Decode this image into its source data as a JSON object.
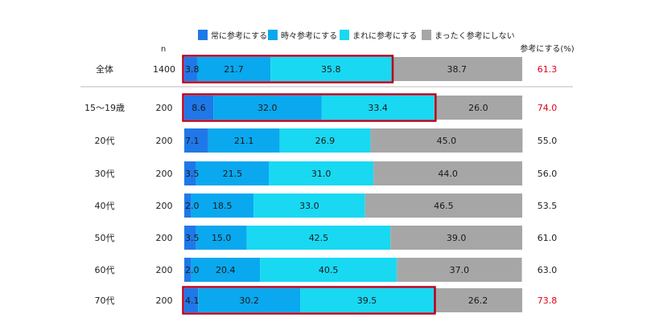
{
  "chart_data": {
    "type": "bar",
    "orientation": "horizontal-stacked-100",
    "n_header": "n",
    "total_header": "参考にする(%)",
    "series": [
      {
        "name": "常に参考にする",
        "color": "#1f78e8"
      },
      {
        "name": "時々参考にする",
        "color": "#0aa8ee"
      },
      {
        "name": "まれに参考にする",
        "color": "#19d8f2"
      },
      {
        "name": "まったく参考にしない",
        "color": "#a6a6a6"
      }
    ],
    "rows": [
      {
        "label": "全体",
        "n": "1400",
        "values": [
          3.8,
          21.7,
          35.8,
          38.7
        ],
        "labels": [
          "3.8",
          "21.7",
          "35.8",
          "38.7"
        ],
        "total": "61.3",
        "highlight": true
      },
      {
        "label": "15～19歳",
        "n": "200",
        "values": [
          8.6,
          32.0,
          33.4,
          26.0
        ],
        "labels": [
          "8.6",
          "32.0",
          "33.4",
          "26.0"
        ],
        "total": "74.0",
        "highlight": true
      },
      {
        "label": "20代",
        "n": "200",
        "values": [
          7.1,
          21.1,
          26.9,
          45.0
        ],
        "labels": [
          "7.1",
          "21.1",
          "26.9",
          "45.0"
        ],
        "total": "55.0",
        "highlight": false
      },
      {
        "label": "30代",
        "n": "200",
        "values": [
          3.5,
          21.5,
          31.0,
          44.0
        ],
        "labels": [
          "3.5",
          "21.5",
          "31.0",
          "44.0"
        ],
        "total": "56.0",
        "highlight": false
      },
      {
        "label": "40代",
        "n": "200",
        "values": [
          2.0,
          18.5,
          33.0,
          46.5
        ],
        "labels": [
          "2.0",
          "18.5",
          "33.0",
          "46.5"
        ],
        "total": "53.5",
        "highlight": false
      },
      {
        "label": "50代",
        "n": "200",
        "values": [
          3.5,
          15.0,
          42.5,
          39.0
        ],
        "labels": [
          "3.5",
          "15.0",
          "42.5",
          "39.0"
        ],
        "total": "61.0",
        "highlight": false
      },
      {
        "label": "60代",
        "n": "200",
        "values": [
          2.0,
          20.4,
          40.5,
          37.0
        ],
        "labels": [
          "2.0",
          "20.4",
          "40.5",
          "37.0"
        ],
        "total": "63.0",
        "highlight": false
      },
      {
        "label": "70代",
        "n": "200",
        "values": [
          4.1,
          30.2,
          39.5,
          26.2
        ],
        "labels": [
          "4.1",
          "30.2",
          "39.5",
          "26.2"
        ],
        "total": "73.8",
        "highlight": true
      }
    ],
    "xlim": [
      0,
      100
    ],
    "highlight_color": "#e0001b",
    "highlight_box_color": "#b00020"
  }
}
